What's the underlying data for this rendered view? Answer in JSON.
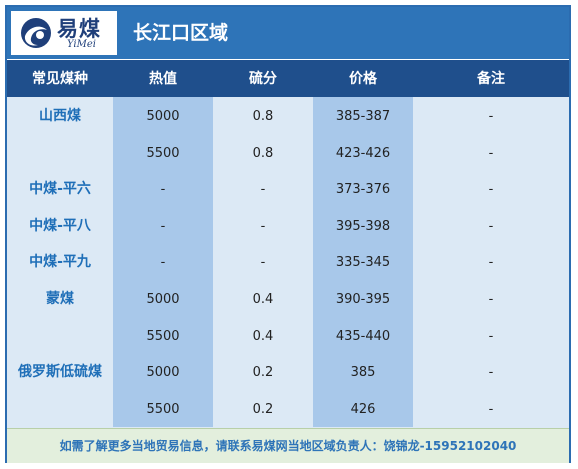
{
  "logo": {
    "name_cn": "易煤",
    "name_en": "YiMei",
    "icon": "swirl-logo-icon"
  },
  "region_title": "长江口区域",
  "columns": [
    "常见煤种",
    "热值",
    "硫分",
    "价格",
    "备注"
  ],
  "rows": [
    {
      "name": "山西煤",
      "heat": "5000",
      "sulfur": "0.8",
      "price": "385-387",
      "note": "-"
    },
    {
      "name": "",
      "heat": "5500",
      "sulfur": "0.8",
      "price": "423-426",
      "note": "-"
    },
    {
      "name": "中煤-平六",
      "heat": "-",
      "sulfur": "-",
      "price": "373-376",
      "note": "-"
    },
    {
      "name": "中煤-平八",
      "heat": "-",
      "sulfur": "-",
      "price": "395-398",
      "note": "-"
    },
    {
      "name": "中煤-平九",
      "heat": "-",
      "sulfur": "-",
      "price": "335-345",
      "note": "-"
    },
    {
      "name": "蒙煤",
      "heat": "5000",
      "sulfur": "0.4",
      "price": "390-395",
      "note": "-"
    },
    {
      "name": "",
      "heat": "5500",
      "sulfur": "0.4",
      "price": "435-440",
      "note": "-"
    },
    {
      "name": "俄罗斯低硫煤",
      "heat": "5000",
      "sulfur": "0.2",
      "price": "385",
      "note": "-"
    },
    {
      "name": "",
      "heat": "5500",
      "sulfur": "0.2",
      "price": "426",
      "note": "-"
    }
  ],
  "footer": "如需了解更多当地贸易信息，请联系易煤网当地区域负责人：饶锦龙-15952102040",
  "colors": {
    "header": "#1f4f8c",
    "topbar": "#2e74b8",
    "shaded_column": "#a8c8ea",
    "body": "#dce9f5",
    "footer": "#e3efdd"
  }
}
